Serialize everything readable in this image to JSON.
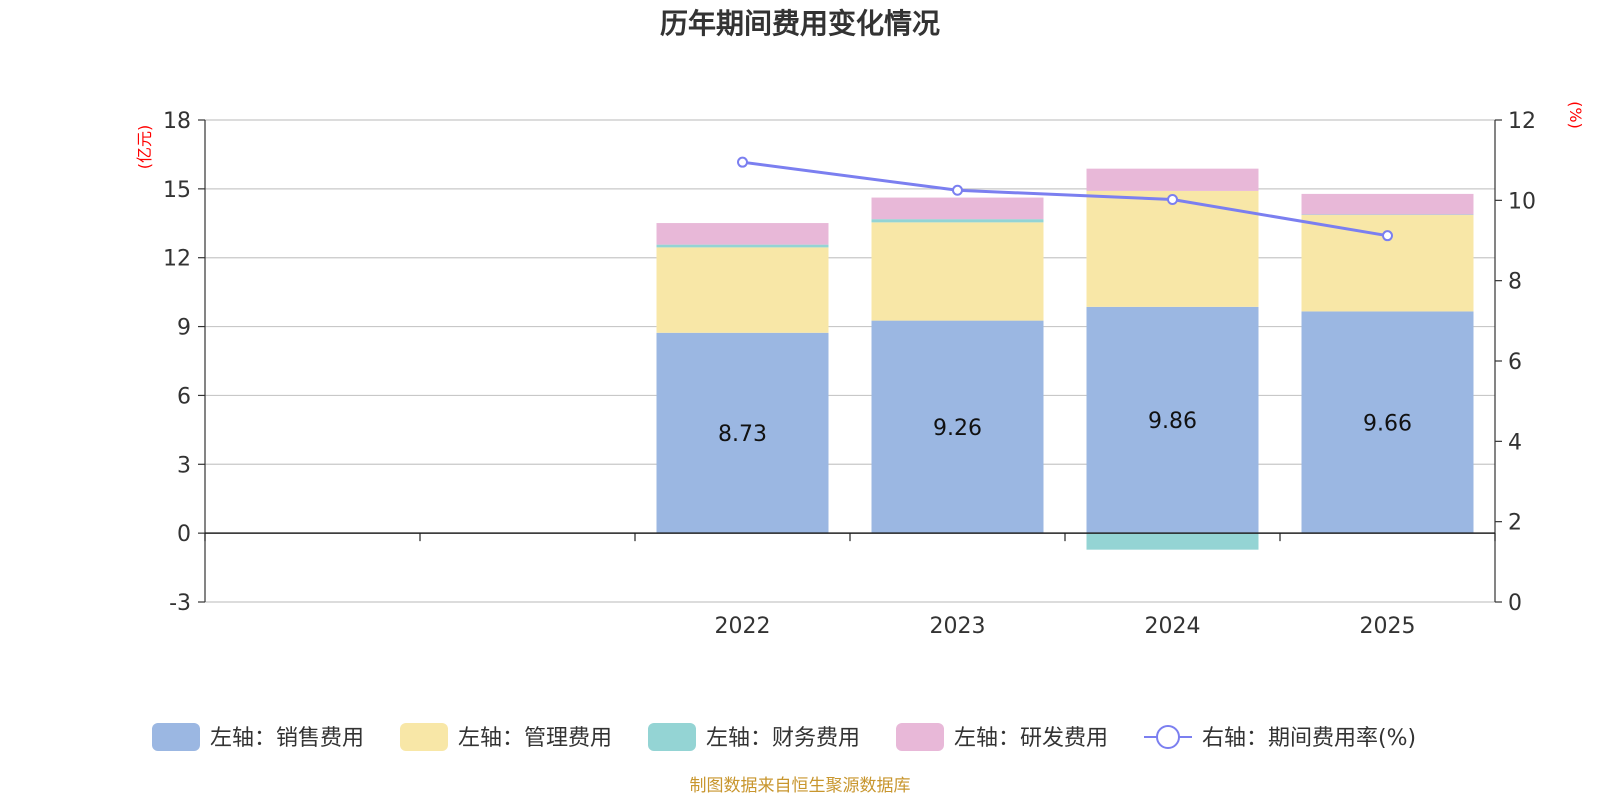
{
  "chart_data": {
    "type": "bar",
    "title": "历年期间费用变化情况",
    "categories": [
      "",
      "",
      "2022",
      "2023",
      "2024",
      "2025"
    ],
    "left_axis": {
      "unit_label": "(亿元)",
      "ylim": [
        -3,
        18
      ],
      "ticks": [
        -3,
        0,
        3,
        6,
        9,
        12,
        15,
        18
      ]
    },
    "right_axis": {
      "unit_label": "(%)",
      "ylim": [
        0,
        12
      ],
      "ticks": [
        0,
        2,
        4,
        6,
        8,
        10,
        12
      ]
    },
    "series": [
      {
        "name": "左轴：销售费用",
        "axis": "left",
        "kind": "bar",
        "color": "#9bb7e2",
        "values": [
          null,
          null,
          8.73,
          9.26,
          9.86,
          9.66
        ],
        "labels": [
          "",
          "",
          "8.73",
          "9.26",
          "9.86",
          "9.66"
        ]
      },
      {
        "name": "左轴：管理费用",
        "axis": "left",
        "kind": "bar",
        "color": "#f8e7a7",
        "values": [
          null,
          null,
          3.72,
          4.28,
          5.05,
          4.2
        ]
      },
      {
        "name": "左轴：财务费用",
        "axis": "left",
        "kind": "bar",
        "color": "#94d4d4",
        "values": [
          null,
          null,
          0.12,
          0.14,
          -0.72,
          0.02
        ]
      },
      {
        "name": "左轴：研发费用",
        "axis": "left",
        "kind": "bar",
        "color": "#e8b8d8",
        "values": [
          null,
          null,
          0.94,
          0.94,
          0.97,
          0.9
        ]
      },
      {
        "name": "右轴：期间费用率(%)",
        "axis": "right",
        "kind": "line",
        "color": "#7b7ff0",
        "values": [
          null,
          null,
          10.95,
          10.25,
          10.02,
          9.12
        ]
      }
    ],
    "grid": true,
    "legend_position": "bottom",
    "source": "制图数据来自恒生聚源数据库"
  }
}
